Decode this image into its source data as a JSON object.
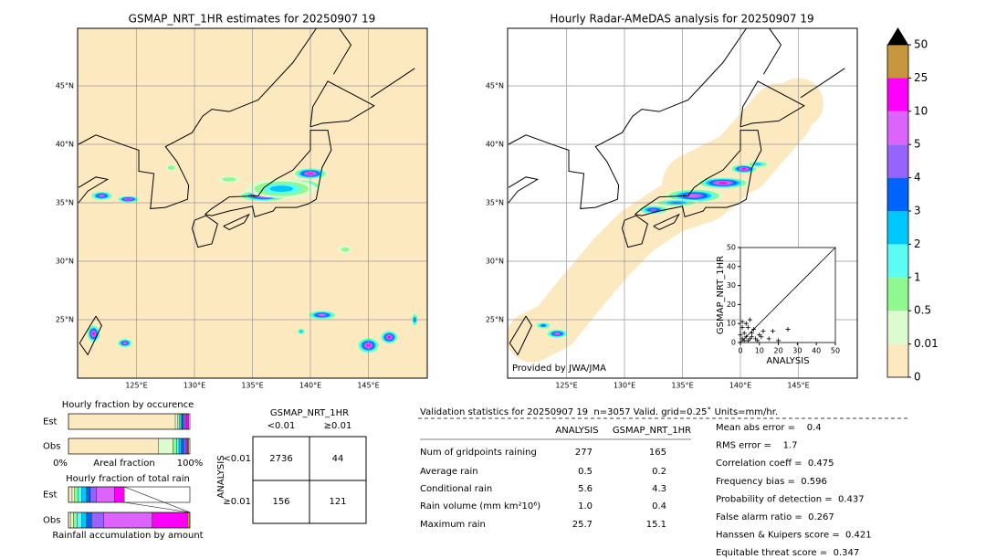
{
  "left_map": {
    "title": "GSMAP_NRT_1HR estimates for 20250907 19",
    "lat_labels": [
      "45°N",
      "40°N",
      "35°N",
      "30°N",
      "25°N"
    ],
    "lon_labels": [
      "125°E",
      "130°E",
      "135°E",
      "140°E",
      "145°E"
    ]
  },
  "right_map": {
    "title": "Hourly Radar-AMeDAS analysis for 20250907 19",
    "lat_labels": [
      "45°N",
      "40°N",
      "35°N",
      "30°N",
      "25°N"
    ],
    "lon_labels": [
      "125°E",
      "130°E",
      "135°E",
      "140°E",
      "145°E"
    ],
    "credit": "Provided by JWA/JMA"
  },
  "colorbar": {
    "ticks": [
      "0",
      "0.01",
      "0.5",
      "1",
      "2",
      "3",
      "4",
      "5",
      "10",
      "25",
      "50"
    ],
    "colors": [
      "#fde9c0",
      "#dcfcd0",
      "#90f890",
      "#5cfcf4",
      "#00c8fc",
      "#0064fc",
      "#9664fc",
      "#dc64fc",
      "#fc00fc",
      "#c8963c"
    ]
  },
  "scatter": {
    "xlabel": "ANALYSIS",
    "ylabel": "GSMAP_NRT_1HR",
    "xlim": [
      0,
      50
    ],
    "ylim": [
      0,
      50
    ],
    "xticks": [
      0,
      10,
      20,
      30,
      40,
      50
    ],
    "yticks": [
      0,
      10,
      20,
      30,
      40,
      50
    ],
    "x": [
      0,
      1,
      2,
      3,
      5,
      1,
      2,
      4,
      6,
      8,
      10,
      12,
      7,
      3,
      0,
      5,
      9,
      15,
      20,
      25,
      1,
      6,
      11,
      17,
      4
    ],
    "y": [
      0,
      2,
      1,
      3,
      2,
      8,
      5,
      1,
      3,
      2,
      4,
      6,
      7,
      10,
      4,
      12,
      1,
      2,
      1,
      7,
      11,
      5,
      3,
      6,
      8
    ]
  },
  "occurrence": {
    "title": "Hourly fraction by occurence",
    "rows": [
      "Est",
      "Obs"
    ],
    "axis_left": "0%",
    "axis_label": "Areal fraction",
    "axis_right": "100%",
    "est": [
      88,
      2,
      1.5,
      1,
      1,
      1,
      1.5,
      1,
      2,
      0
    ],
    "obs": [
      74,
      12,
      3,
      2,
      2,
      2,
      1.5,
      1,
      1,
      0.5
    ]
  },
  "rain_total": {
    "title": "Hourly fraction of total rain",
    "rows": [
      "Est",
      "Obs"
    ],
    "axis_label": "Rainfall accumulation by amount",
    "est": [
      3,
      2,
      3,
      3,
      4,
      3,
      5,
      15,
      8,
      0
    ],
    "obs": [
      2,
      2,
      3,
      4,
      4,
      4,
      10,
      40,
      29,
      2
    ]
  },
  "contingency": {
    "title": "GSMAP_NRT_1HR",
    "columns": [
      "<0.01",
      "≥0.01"
    ],
    "row_title": "ANALYSIS",
    "rows": [
      "<0.01",
      "≥0.01"
    ],
    "cells": [
      [
        2736,
        44
      ],
      [
        156,
        121
      ]
    ]
  },
  "validation": {
    "header": "Validation statistics for 20250907 19  n=3057 Valid. grid=0.25˚ Units=mm/hr.",
    "columns": [
      "ANALYSIS",
      "GSMAP_NRT_1HR"
    ],
    "rows": [
      [
        "Num of gridpoints raining",
        "277",
        "165"
      ],
      [
        "Average rain",
        "0.5",
        "0.2"
      ],
      [
        "Conditional rain",
        "5.6",
        "4.3"
      ],
      [
        "Rain volume (mm km²10⁶)",
        "1.0",
        "0.4"
      ],
      [
        "Maximum rain",
        "25.7",
        "15.1"
      ]
    ],
    "scores": [
      "Mean abs error =    0.4",
      "RMS error =    1.7",
      "Correlation coeff =  0.475",
      "Frequency bias =  0.596",
      "Probability of detection =  0.437",
      "False alarm ratio =  0.267",
      "Hanssen & Kuipers score =  0.421",
      "Equitable threat score =  0.347"
    ]
  }
}
